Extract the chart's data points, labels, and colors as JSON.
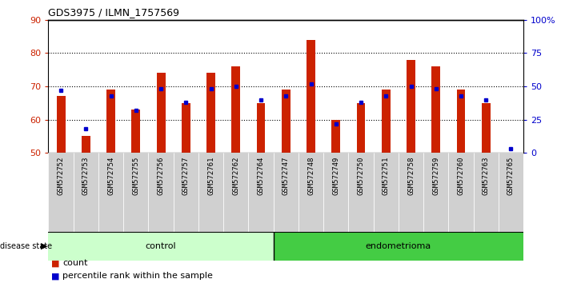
{
  "title": "GDS3975 / ILMN_1757569",
  "samples": [
    "GSM572752",
    "GSM572753",
    "GSM572754",
    "GSM572755",
    "GSM572756",
    "GSM572757",
    "GSM572761",
    "GSM572762",
    "GSM572764",
    "GSM572747",
    "GSM572748",
    "GSM572749",
    "GSM572750",
    "GSM572751",
    "GSM572758",
    "GSM572759",
    "GSM572760",
    "GSM572763",
    "GSM572765"
  ],
  "counts": [
    67,
    55,
    69,
    63,
    74,
    65,
    74,
    76,
    65,
    69,
    84,
    60,
    65,
    69,
    78,
    76,
    69,
    65,
    50
  ],
  "percentiles": [
    47,
    18,
    43,
    32,
    48,
    38,
    48,
    50,
    40,
    43,
    52,
    22,
    38,
    43,
    50,
    48,
    43,
    40,
    3
  ],
  "control_count": 9,
  "endometrioma_count": 10,
  "ylim_left": [
    50,
    90
  ],
  "ylim_right": [
    0,
    100
  ],
  "yticks_left": [
    50,
    60,
    70,
    80,
    90
  ],
  "yticks_right": [
    0,
    25,
    50,
    75,
    100
  ],
  "ytick_labels_right": [
    "0",
    "25",
    "50",
    "75",
    "100%"
  ],
  "bar_color": "#cc2200",
  "marker_color": "#0000cc",
  "control_bg": "#ccffcc",
  "endometrioma_bg": "#44cc44",
  "cell_bg": "#d0d0d0",
  "legend_count_color": "#cc2200",
  "legend_pct_color": "#0000cc",
  "bar_width": 0.35
}
